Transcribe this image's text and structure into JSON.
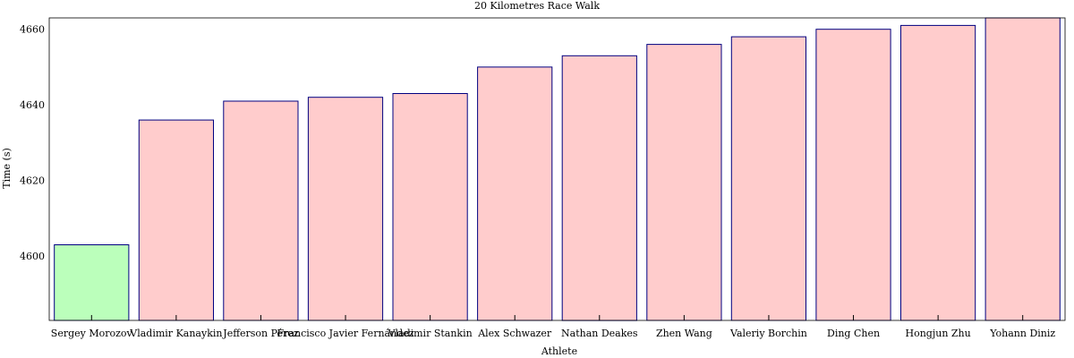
{
  "chart_data": {
    "type": "bar",
    "title": "20 Kilometres Race Walk",
    "xlabel": "Athlete",
    "ylabel": "Time (s)",
    "categories": [
      "Sergey Morozov",
      "Vladimir Kanaykin",
      "Jefferson Pérez",
      "Francisco Javier Fernández",
      "Vladimir Stankin",
      "Alex Schwazer",
      "Nathan Deakes",
      "Zhen Wang",
      "Valeriy Borchin",
      "Ding Chen",
      "Hongjun Zhu",
      "Yohann Diniz"
    ],
    "values": [
      4603,
      4636,
      4641,
      4642,
      4643,
      4650,
      4653,
      4656,
      4658,
      4660,
      4661,
      4663
    ],
    "highlight_index": 0,
    "ylim": [
      4583,
      4663
    ],
    "yticks": [
      4600,
      4620,
      4640,
      4660
    ],
    "colors": {
      "highlight_fill": "#bbffbb",
      "bar_fill": "#ffcccc",
      "bar_stroke": "#000080"
    },
    "grid": false,
    "legend": "none"
  }
}
